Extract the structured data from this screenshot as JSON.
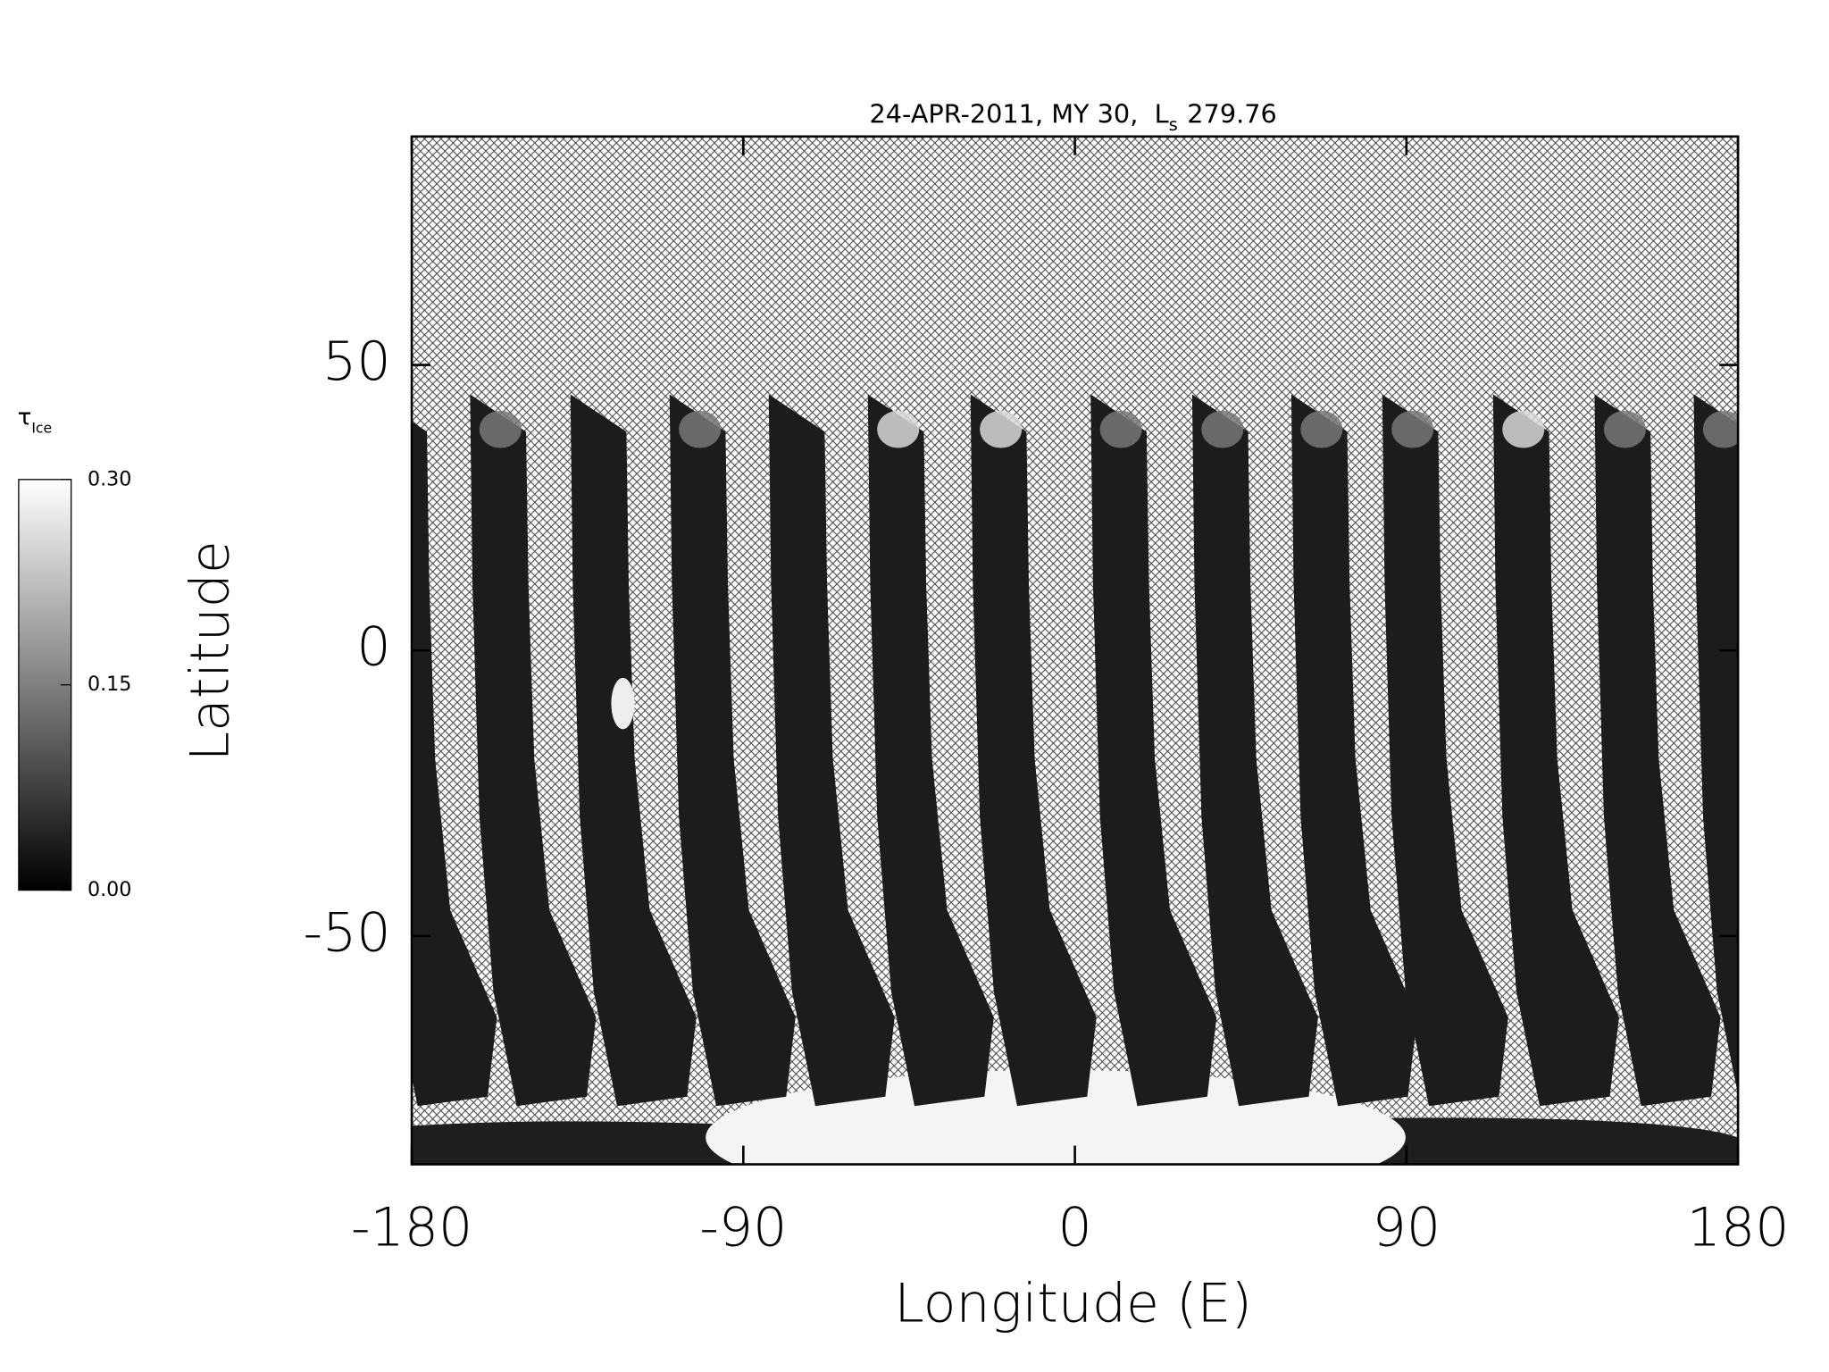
{
  "chart_data": {
    "type": "map",
    "title": [
      "24-APR-2011, MY 30,",
      "L",
      "s",
      "279.76"
    ],
    "xlabel": "Longitude (E)",
    "ylabel": "Latitude",
    "xlim": [
      -180,
      180
    ],
    "ylim": [
      -90,
      90
    ],
    "xticks": [
      -180,
      -90,
      0,
      90,
      180
    ],
    "yticks": [
      -50,
      0,
      50
    ],
    "colorbar": {
      "label": [
        "τ",
        "Ice"
      ],
      "lim": [
        0,
        0.3
      ],
      "ticks": [
        {
          "value": 0,
          "label": "0.00"
        },
        {
          "value": 0.15,
          "label": "0.15"
        },
        {
          "value": 0.3,
          "label": "0.30"
        }
      ],
      "colors": [
        "#000000",
        "#ffffff"
      ]
    }
  }
}
